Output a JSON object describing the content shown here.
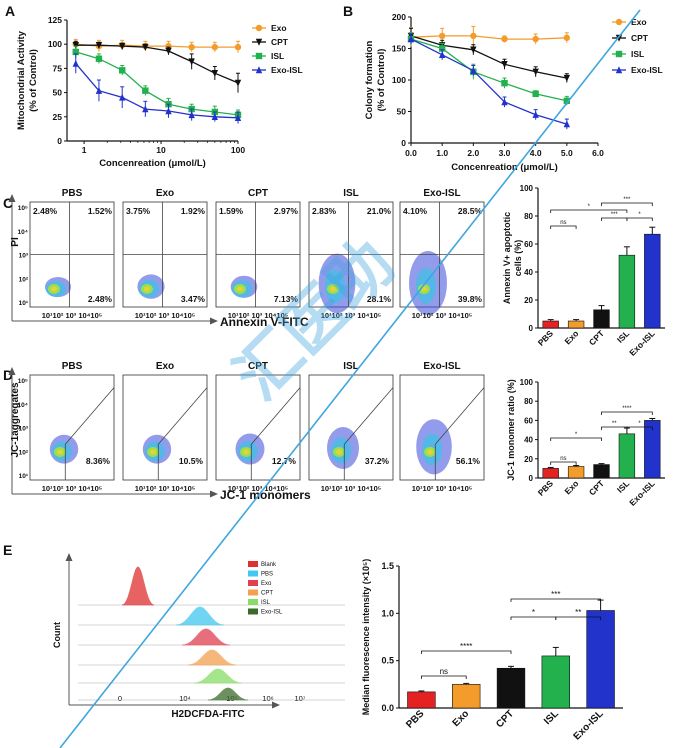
{
  "colors": {
    "exo": "#f39c2c",
    "cpt": "#111111",
    "isl": "#22b14c",
    "exo_isl": "#2233cc",
    "pbs": "#e52222",
    "watermark": "#3fa6e0",
    "blank": "#e03030",
    "exo_hist": "#e04050",
    "pbs_hist": "#40c8f0",
    "cpt_hist": "#f4a050",
    "isl_hist": "#88dd66",
    "exoisl_hist": "#3b6b2a"
  },
  "chart_data": [
    {
      "type": "line",
      "panel": "A",
      "xscale": "log",
      "xlabel": "Concenreation (μmol/L)",
      "ylabel": "Mitochondrial Activity\n(% of Control)",
      "yticks": [
        "0",
        "25",
        "50",
        "75",
        "100",
        "125"
      ],
      "xticks": [
        "1",
        "10",
        "100"
      ],
      "ylim": [
        0,
        125
      ],
      "xlim": [
        0.6,
        100
      ],
      "x": [
        0.78,
        1.56,
        3.13,
        6.25,
        12.5,
        25,
        50,
        100
      ],
      "series": [
        {
          "name": "Exo",
          "values": [
            100,
            98,
            99,
            98,
            98,
            97,
            97,
            97
          ],
          "errors": [
            5,
            6,
            5,
            5,
            5,
            5,
            5,
            6
          ]
        },
        {
          "name": "CPT",
          "values": [
            99,
            99,
            98,
            97,
            93,
            82,
            70,
            60
          ],
          "errors": [
            4,
            3,
            3,
            3,
            4,
            8,
            7,
            10
          ]
        },
        {
          "name": "ISL",
          "values": [
            92,
            85,
            73,
            52,
            38,
            33,
            30,
            27
          ],
          "errors": [
            6,
            5,
            5,
            5,
            6,
            5,
            6,
            5
          ]
        },
        {
          "name": "Exo-ISL",
          "values": [
            80,
            52,
            45,
            33,
            31,
            27,
            25,
            24
          ],
          "errors": [
            10,
            11,
            11,
            8,
            7,
            6,
            5,
            6
          ]
        }
      ]
    },
    {
      "type": "line",
      "panel": "B",
      "xlabel": "Concenreation (μmol/L)",
      "ylabel": "Colony formation\n(% of Control)",
      "yticks": [
        "0",
        "50",
        "100",
        "150",
        "200"
      ],
      "xticks": [
        "0.0",
        "1.0",
        "2.0",
        "3.0",
        "4.0",
        "5.0",
        "6.0"
      ],
      "ylim": [
        0,
        200
      ],
      "xlim": [
        0,
        6
      ],
      "x": [
        0,
        1,
        2,
        3,
        4,
        5
      ],
      "series": [
        {
          "name": "Exo",
          "values": [
            168,
            170,
            170,
            165,
            165,
            167
          ],
          "errors": [
            15,
            12,
            15,
            5,
            8,
            8
          ]
        },
        {
          "name": "CPT",
          "values": [
            170,
            155,
            148,
            125,
            113,
            103
          ],
          "errors": [
            12,
            8,
            8,
            8,
            8,
            7
          ]
        },
        {
          "name": "ISL",
          "values": [
            165,
            150,
            113,
            95,
            78,
            67
          ],
          "errors": [
            10,
            8,
            12,
            8,
            5,
            7
          ]
        },
        {
          "name": "Exo-ISL",
          "values": [
            165,
            140,
            115,
            65,
            45,
            30
          ],
          "errors": [
            8,
            8,
            8,
            8,
            8,
            8
          ]
        }
      ]
    },
    {
      "type": "bar",
      "panel": "C",
      "ylabel": "Annexin V+ apoptotic\ncells (%)",
      "yticks": [
        "0",
        "20",
        "40",
        "60",
        "80",
        "100"
      ],
      "ylim": [
        0,
        100
      ],
      "categories": [
        "PBS",
        "Exo",
        "CPT",
        "ISL",
        "Exo-ISL"
      ],
      "values": [
        5,
        5,
        13,
        52,
        67
      ],
      "errors": [
        1,
        1,
        3,
        6,
        5
      ],
      "sig": [
        "ns",
        "*",
        "***",
        "***",
        "*"
      ]
    },
    {
      "type": "bar",
      "panel": "D",
      "ylabel": "JC-1 monomer ratio (%)",
      "yticks": [
        "0",
        "20",
        "40",
        "60",
        "80",
        "100"
      ],
      "ylim": [
        0,
        100
      ],
      "categories": [
        "PBS",
        "Exo",
        "CPT",
        "ISL",
        "Exo-ISL"
      ],
      "values": [
        10,
        12,
        14,
        46,
        60
      ],
      "errors": [
        1,
        1,
        1,
        6,
        2
      ],
      "sig": [
        "ns",
        "*",
        "****",
        "**",
        "*"
      ]
    },
    {
      "type": "bar",
      "panel": "E",
      "ylabel": "Median fluorescence intensity (×10⁵)",
      "yticks": [
        "0.0",
        "0.5",
        "1.0",
        "1.5"
      ],
      "ylim": [
        0,
        1.5
      ],
      "categories": [
        "PBS",
        "Exo",
        "CPT",
        "ISL",
        "Exo-ISL"
      ],
      "values": [
        0.17,
        0.25,
        0.42,
        0.55,
        1.03
      ],
      "errors": [
        0.01,
        0.01,
        0.02,
        0.09,
        0.11
      ],
      "sig": [
        "ns",
        "****",
        "*",
        "**",
        "***"
      ]
    }
  ],
  "panels": {
    "A": "A",
    "B": "B",
    "C": "C",
    "D": "D",
    "E": "E"
  },
  "legend": [
    "Exo",
    "CPT",
    "ISL",
    "Exo-ISL"
  ],
  "flow_c": {
    "titles": [
      "PBS",
      "Exo",
      "CPT",
      "ISL",
      "Exo-ISL"
    ],
    "q_tl": [
      "2.48%",
      "3.75%",
      "1.59%",
      "2.83%",
      "4.10%"
    ],
    "q_tr": [
      "1.52%",
      "1.92%",
      "2.97%",
      "21.0%",
      "28.5%"
    ],
    "q_br": [
      "2.48%",
      "3.47%",
      "7.13%",
      "28.1%",
      "39.8%"
    ],
    "ylabel": "PI",
    "xlabel": "Annexin V-FITC",
    "yticks": [
      "10⁵",
      "10⁴",
      "10³",
      "10²",
      "10¹"
    ],
    "xticks": "10¹10² 10³ 10⁴10⁵"
  },
  "flow_d": {
    "titles": [
      "PBS",
      "Exo",
      "CPT",
      "ISL",
      "Exo-ISL"
    ],
    "pct": [
      "8.36%",
      "10.5%",
      "12.7%",
      "37.2%",
      "56.1%"
    ],
    "ylabel": "JC-1aggregates",
    "xlabel": "JC-1 monomers",
    "yticks": [
      "10⁵",
      "10⁴",
      "10³",
      "10²",
      "10¹"
    ],
    "xticks": "10¹10² 10³ 10⁴10⁵"
  },
  "hist_e": {
    "legend": [
      "Blank",
      "PBS",
      "Exo",
      "CPT",
      "ISL",
      "Exo-ISL"
    ],
    "ylabel": "Count",
    "xlabel": "H2DCFDA-FITC",
    "xticks": [
      "0",
      "10⁴",
      "10⁵",
      "10⁶",
      "10⁷"
    ]
  },
  "watermark": "汇医助"
}
